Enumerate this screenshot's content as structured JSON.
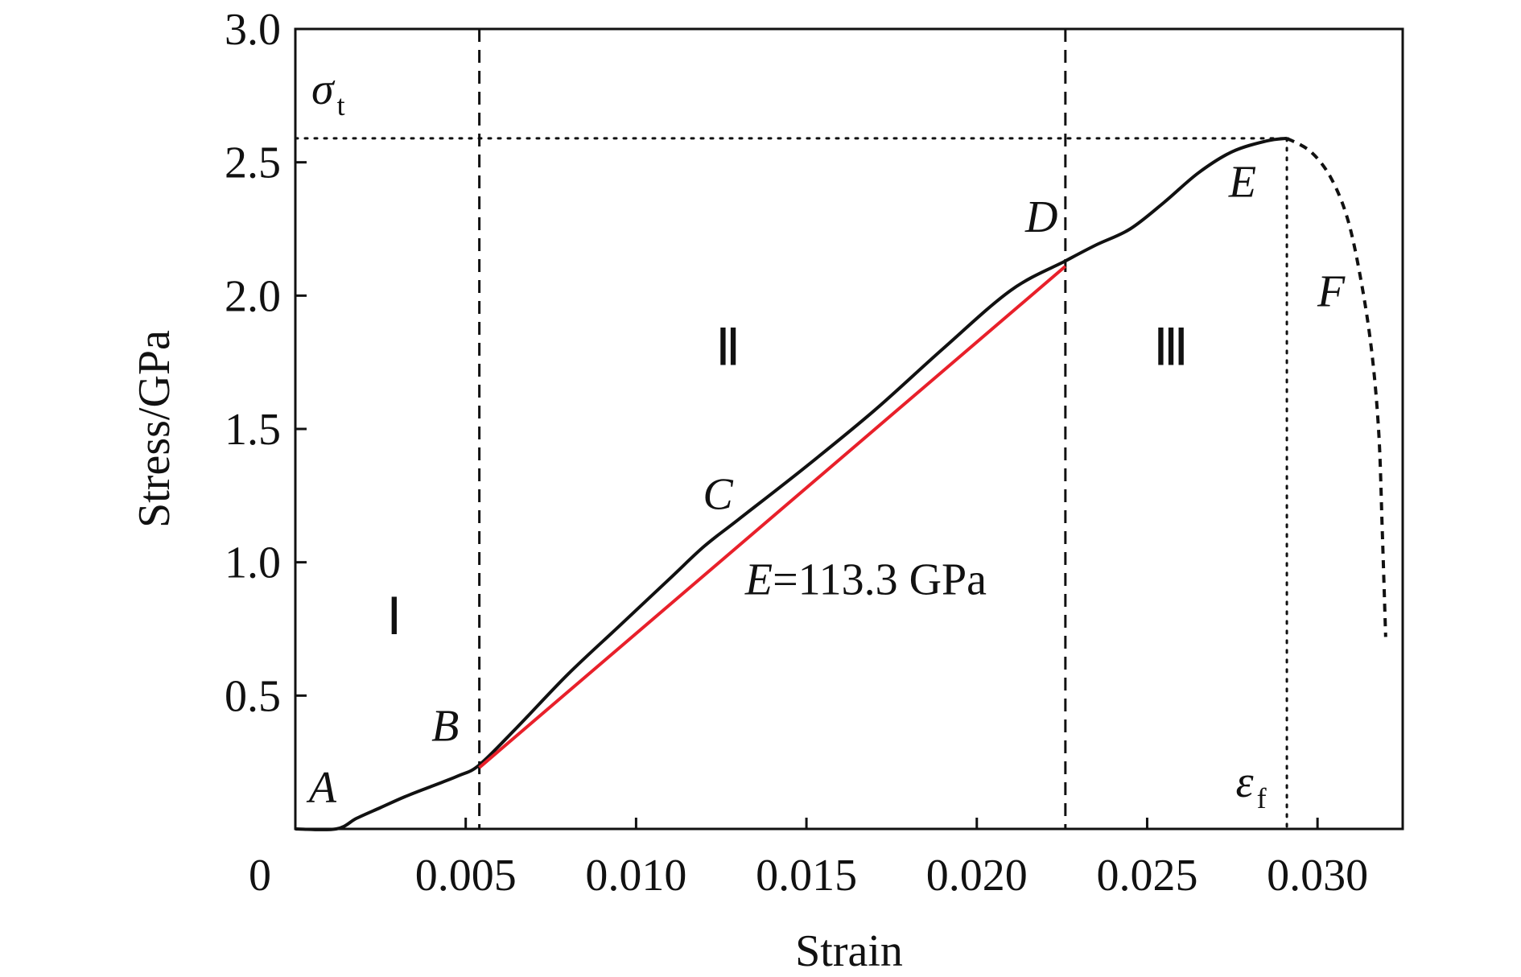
{
  "chart_data": {
    "type": "line",
    "xlabel": "Strain",
    "ylabel": "Stress/GPa",
    "xlim": [
      0,
      0.0325
    ],
    "ylim": [
      0,
      3.0
    ],
    "grid": false,
    "x_ticks": [
      {
        "value": 0,
        "label": "0"
      },
      {
        "value": 0.005,
        "label": "0.005"
      },
      {
        "value": 0.01,
        "label": "0.010"
      },
      {
        "value": 0.015,
        "label": "0.015"
      },
      {
        "value": 0.02,
        "label": "0.020"
      },
      {
        "value": 0.025,
        "label": "0.025"
      },
      {
        "value": 0.03,
        "label": "0.030"
      }
    ],
    "y_ticks": [
      {
        "value": 0.5,
        "label": "0.5"
      },
      {
        "value": 1.0,
        "label": "1.0"
      },
      {
        "value": 1.5,
        "label": "1.5"
      },
      {
        "value": 2.0,
        "label": "2.0"
      },
      {
        "value": 2.5,
        "label": "2.5"
      },
      {
        "value": 3.0,
        "label": "3.0"
      }
    ],
    "series": [
      {
        "style": "solid",
        "color": "#111111",
        "x": [
          0.0,
          0.0012,
          0.0018,
          0.0025,
          0.0032,
          0.004,
          0.0048,
          0.0054,
          0.0065,
          0.008,
          0.0095,
          0.011,
          0.012,
          0.013,
          0.015,
          0.017,
          0.019,
          0.021,
          0.0226,
          0.0235,
          0.0245,
          0.0255,
          0.0265,
          0.0275,
          0.0285,
          0.0291
        ],
        "y": [
          0.0,
          0.0,
          0.04,
          0.08,
          0.12,
          0.16,
          0.2,
          0.24,
          0.38,
          0.58,
          0.76,
          0.94,
          1.06,
          1.16,
          1.36,
          1.57,
          1.8,
          2.02,
          2.13,
          2.19,
          2.25,
          2.35,
          2.46,
          2.54,
          2.58,
          2.59
        ]
      },
      {
        "style": "dashed",
        "color": "#111111",
        "x": [
          0.0291,
          0.0298,
          0.0304,
          0.0309,
          0.0313,
          0.0316,
          0.0318,
          0.0319,
          0.032
        ],
        "y": [
          2.59,
          2.54,
          2.44,
          2.28,
          2.04,
          1.78,
          1.48,
          1.12,
          0.72
        ]
      },
      {
        "style": "solid",
        "color": "#e8202a",
        "x": [
          0.0054,
          0.0226
        ],
        "y": [
          0.23,
          2.11
        ]
      }
    ],
    "reference_lines": {
      "vertical_dashed": [
        0.0054,
        0.0226
      ],
      "vertical_dotted": 0.0291,
      "horizontal_dotted": 2.59
    },
    "point_labels": [
      {
        "text": "A",
        "x": 0.0008,
        "y": 0.1
      },
      {
        "text": "B",
        "x": 0.0044,
        "y": 0.33
      },
      {
        "text": "C",
        "x": 0.0124,
        "y": 1.2
      },
      {
        "text": "D",
        "x": 0.0219,
        "y": 2.24
      },
      {
        "text": "E",
        "x": 0.0278,
        "y": 2.37
      },
      {
        "text": "F",
        "x": 0.0304,
        "y": 1.96
      }
    ],
    "region_labels": [
      {
        "text": "Ⅰ",
        "x": 0.0029,
        "y": 0.73
      },
      {
        "text": "Ⅱ",
        "x": 0.0127,
        "y": 1.74
      },
      {
        "text": "Ⅲ",
        "x": 0.0257,
        "y": 1.74
      }
    ],
    "annotations": {
      "modulus": {
        "italic": "E",
        "rest": "=113.3 GPa"
      },
      "sigma": {
        "symbol": "σ",
        "sub": "t"
      },
      "epsilon": {
        "symbol": "ε",
        "sub": "f"
      }
    }
  }
}
